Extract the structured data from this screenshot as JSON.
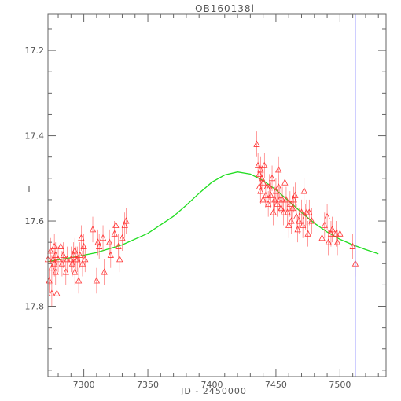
{
  "chart_data": {
    "type": "scatter",
    "title": "OB160138l",
    "xlabel": "JD - 2450000",
    "ylabel": "I",
    "xlim": [
      7272,
      7536
    ],
    "ylim": [
      17.965,
      17.115
    ],
    "y_inverted": true,
    "grid": false,
    "x_ticks": [
      7300,
      7350,
      7400,
      7450,
      7500
    ],
    "x_tick_labels": [
      "7300",
      "7350",
      "7400",
      "7450",
      "7500"
    ],
    "y_ticks": [
      17.2,
      17.4,
      17.6,
      17.8
    ],
    "y_tick_labels": [
      "17.2",
      "17.4",
      "17.6",
      "17.8"
    ],
    "vertical_line": {
      "x": 7512,
      "color": "#8888ff"
    },
    "colors": {
      "points": "#ff3333",
      "model": "#22dd22",
      "axes": "#666666"
    },
    "series": [
      {
        "type": "scatter",
        "marker": "triangle-open",
        "points": [
          [
            7272,
            17.69,
            0.03
          ],
          [
            7273,
            17.74,
            0.03
          ],
          [
            7274,
            17.67,
            0.03
          ],
          [
            7275,
            17.71,
            0.03
          ],
          [
            7275,
            17.77,
            0.03
          ],
          [
            7276,
            17.69,
            0.03
          ],
          [
            7277,
            17.66,
            0.03
          ],
          [
            7277,
            17.7,
            0.03
          ],
          [
            7278,
            17.68,
            0.03
          ],
          [
            7278,
            17.72,
            0.03
          ],
          [
            7279,
            17.77,
            0.03
          ],
          [
            7280,
            17.69,
            0.03
          ],
          [
            7282,
            17.66,
            0.03
          ],
          [
            7283,
            17.7,
            0.03
          ],
          [
            7284,
            17.68,
            0.03
          ],
          [
            7286,
            17.72,
            0.03
          ],
          [
            7287,
            17.69,
            0.03
          ],
          [
            7290,
            17.69,
            0.03
          ],
          [
            7291,
            17.7,
            0.03
          ],
          [
            7292,
            17.68,
            0.03
          ],
          [
            7293,
            17.67,
            0.03
          ],
          [
            7293,
            17.72,
            0.03
          ],
          [
            7294,
            17.69,
            0.03
          ],
          [
            7295,
            17.69,
            0.03
          ],
          [
            7296,
            17.74,
            0.03
          ],
          [
            7297,
            17.68,
            0.03
          ],
          [
            7298,
            17.64,
            0.03
          ],
          [
            7299,
            17.7,
            0.03
          ],
          [
            7300,
            17.66,
            0.03
          ],
          [
            7301,
            17.69,
            0.03
          ],
          [
            7307,
            17.62,
            0.03
          ],
          [
            7310,
            17.74,
            0.03
          ],
          [
            7311,
            17.65,
            0.03
          ],
          [
            7312,
            17.66,
            0.03
          ],
          [
            7315,
            17.64,
            0.03
          ],
          [
            7316,
            17.72,
            0.03
          ],
          [
            7320,
            17.65,
            0.03
          ],
          [
            7321,
            17.68,
            0.03
          ],
          [
            7324,
            17.63,
            0.03
          ],
          [
            7325,
            17.61,
            0.03
          ],
          [
            7327,
            17.66,
            0.03
          ],
          [
            7328,
            17.69,
            0.03
          ],
          [
            7330,
            17.64,
            0.03
          ],
          [
            7332,
            17.61,
            0.03
          ],
          [
            7333,
            17.6,
            0.03
          ],
          [
            7435,
            17.42,
            0.03
          ],
          [
            7436,
            17.47,
            0.03
          ],
          [
            7437,
            17.49,
            0.03
          ],
          [
            7437,
            17.52,
            0.03
          ],
          [
            7438,
            17.53,
            0.03
          ],
          [
            7438,
            17.48,
            0.03
          ],
          [
            7439,
            17.5,
            0.03
          ],
          [
            7440,
            17.51,
            0.03
          ],
          [
            7440,
            17.55,
            0.03
          ],
          [
            7441,
            17.47,
            0.03
          ],
          [
            7442,
            17.54,
            0.03
          ],
          [
            7443,
            17.52,
            0.03
          ],
          [
            7444,
            17.56,
            0.03
          ],
          [
            7445,
            17.52,
            0.03
          ],
          [
            7446,
            17.54,
            0.03
          ],
          [
            7447,
            17.5,
            0.03
          ],
          [
            7448,
            17.58,
            0.03
          ],
          [
            7449,
            17.55,
            0.03
          ],
          [
            7450,
            17.53,
            0.03
          ],
          [
            7451,
            17.56,
            0.03
          ],
          [
            7452,
            17.48,
            0.03
          ],
          [
            7452,
            17.52,
            0.03
          ],
          [
            7453,
            17.55,
            0.03
          ],
          [
            7454,
            17.57,
            0.03
          ],
          [
            7455,
            17.55,
            0.03
          ],
          [
            7456,
            17.58,
            0.03
          ],
          [
            7457,
            17.51,
            0.03
          ],
          [
            7458,
            17.55,
            0.03
          ],
          [
            7459,
            17.58,
            0.03
          ],
          [
            7460,
            17.61,
            0.03
          ],
          [
            7461,
            17.56,
            0.03
          ],
          [
            7462,
            17.6,
            0.03
          ],
          [
            7463,
            17.57,
            0.03
          ],
          [
            7464,
            17.55,
            0.03
          ],
          [
            7465,
            17.54,
            0.03
          ],
          [
            7466,
            17.59,
            0.03
          ],
          [
            7467,
            17.62,
            0.03
          ],
          [
            7468,
            17.6,
            0.03
          ],
          [
            7470,
            17.58,
            0.03
          ],
          [
            7471,
            17.61,
            0.03
          ],
          [
            7472,
            17.53,
            0.03
          ],
          [
            7473,
            17.59,
            0.03
          ],
          [
            7474,
            17.58,
            0.03
          ],
          [
            7475,
            17.63,
            0.03
          ],
          [
            7476,
            17.58,
            0.03
          ],
          [
            7478,
            17.6,
            0.03
          ],
          [
            7486,
            17.64,
            0.03
          ],
          [
            7488,
            17.61,
            0.03
          ],
          [
            7490,
            17.59,
            0.03
          ],
          [
            7491,
            17.65,
            0.03
          ],
          [
            7493,
            17.63,
            0.03
          ],
          [
            7494,
            17.62,
            0.03
          ],
          [
            7497,
            17.63,
            0.03
          ],
          [
            7498,
            17.65,
            0.03
          ],
          [
            7500,
            17.63,
            0.03
          ],
          [
            7510,
            17.66,
            0.03
          ],
          [
            7512,
            17.7,
            0.03
          ]
        ]
      },
      {
        "type": "line",
        "points": [
          [
            7272,
            17.695
          ],
          [
            7290,
            17.686
          ],
          [
            7310,
            17.674
          ],
          [
            7330,
            17.656
          ],
          [
            7350,
            17.629
          ],
          [
            7370,
            17.589
          ],
          [
            7380,
            17.563
          ],
          [
            7390,
            17.535
          ],
          [
            7400,
            17.509
          ],
          [
            7410,
            17.492
          ],
          [
            7420,
            17.485
          ],
          [
            7430,
            17.49
          ],
          [
            7440,
            17.505
          ],
          [
            7450,
            17.527
          ],
          [
            7460,
            17.553
          ],
          [
            7470,
            17.58
          ],
          [
            7480,
            17.605
          ],
          [
            7490,
            17.626
          ],
          [
            7500,
            17.643
          ],
          [
            7510,
            17.656
          ],
          [
            7520,
            17.667
          ],
          [
            7530,
            17.677
          ]
        ]
      }
    ]
  }
}
